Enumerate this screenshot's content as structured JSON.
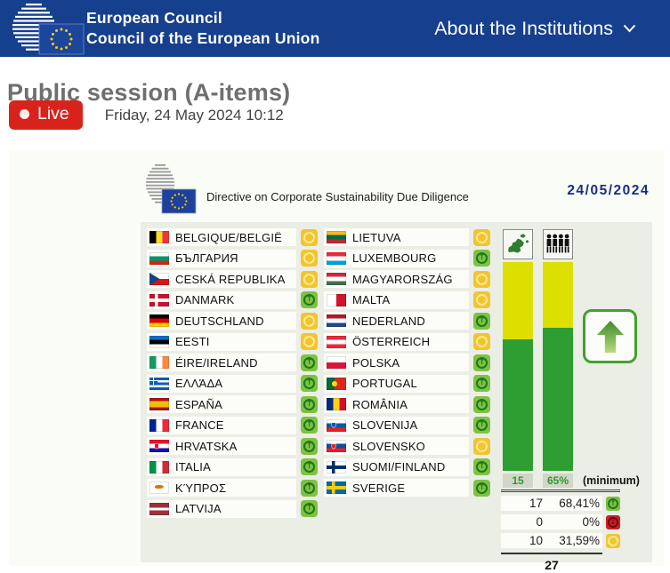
{
  "header": {
    "org_line1": "European Council",
    "org_line2": "Council of the European Union",
    "nav_label": "About the Institutions",
    "bg_color": "#163f8d"
  },
  "page": {
    "title": "Public session (A-items)",
    "live_label": "Live",
    "datetime": "Friday, 24 May 2024 10:12",
    "live_color": "#d8231d"
  },
  "vote_screen": {
    "subject": "Directive on Corporate Sustainability Due Diligence",
    "date": "24/05/2024",
    "legend_min_label": "(minimum)",
    "icons": [
      "europe-map-icon",
      "population-icon",
      "result-up-arrow-icon"
    ],
    "vote_colors": {
      "favour": "#7fc143",
      "against": "#c92026",
      "abstain": "#f2c431",
      "bar_green": "#2f9e32",
      "bar_yellow": "#dcdf00"
    },
    "countries_left": [
      {
        "name": "BELGIQUE/BELGIË",
        "vote": "abstain",
        "flag": {
          "t": "v",
          "c": [
            "#000000",
            "#fdda24",
            "#ef3340"
          ]
        }
      },
      {
        "name": "БЪЛГАРИЯ",
        "vote": "abstain",
        "flag": {
          "t": "h",
          "c": [
            "#ffffff",
            "#00966e",
            "#d62612"
          ]
        }
      },
      {
        "name": "CESKÁ REPUBLIKA",
        "vote": "abstain",
        "flag": {
          "t": "cz"
        }
      },
      {
        "name": "DANMARK",
        "vote": "favour",
        "flag": {
          "t": "cross",
          "bg": "#c8102e",
          "cr": "#ffffff"
        }
      },
      {
        "name": "DEUTSCHLAND",
        "vote": "abstain",
        "flag": {
          "t": "h",
          "c": [
            "#000000",
            "#dd0000",
            "#ffce00"
          ]
        }
      },
      {
        "name": "EESTI",
        "vote": "abstain",
        "flag": {
          "t": "h",
          "c": [
            "#0072ce",
            "#000000",
            "#ffffff"
          ]
        }
      },
      {
        "name": "ÉIRE/IRELAND",
        "vote": "favour",
        "flag": {
          "t": "v",
          "c": [
            "#169b62",
            "#ffffff",
            "#ff883e"
          ]
        }
      },
      {
        "name": "ΕΛΛΆΔΑ",
        "vote": "favour",
        "flag": {
          "t": "gr"
        }
      },
      {
        "name": "ESPAÑA",
        "vote": "favour",
        "flag": {
          "t": "hp",
          "c": [
            "#aa151b",
            "#f1bf00",
            "#aa151b"
          ],
          "p": [
            25,
            75
          ]
        }
      },
      {
        "name": "FRANCE",
        "vote": "favour",
        "flag": {
          "t": "v",
          "c": [
            "#002395",
            "#ffffff",
            "#ed2939"
          ]
        }
      },
      {
        "name": "HRVATSKA",
        "vote": "favour",
        "flag": {
          "t": "h",
          "c": [
            "#e8112d",
            "#ffffff",
            "#1711a6"
          ],
          "crest": "#e8112d"
        }
      },
      {
        "name": "ITALIA",
        "vote": "favour",
        "flag": {
          "t": "v",
          "c": [
            "#009246",
            "#ffffff",
            "#ce2b37"
          ]
        }
      },
      {
        "name": "ΚΎΠΡΟΣ",
        "vote": "favour",
        "flag": {
          "t": "cy"
        }
      },
      {
        "name": "LATVIJA",
        "vote": "favour",
        "flag": {
          "t": "hp",
          "c": [
            "#9e3039",
            "#ffffff",
            "#9e3039"
          ],
          "p": [
            40,
            60
          ]
        }
      }
    ],
    "countries_right": [
      {
        "name": "LIETUVA",
        "vote": "abstain",
        "flag": {
          "t": "h",
          "c": [
            "#fdb913",
            "#006a44",
            "#c1272d"
          ]
        }
      },
      {
        "name": "LUXEMBOURG",
        "vote": "favour",
        "flag": {
          "t": "h",
          "c": [
            "#ed2939",
            "#ffffff",
            "#00a1de"
          ]
        }
      },
      {
        "name": "MAGYARORSZÁG",
        "vote": "abstain",
        "flag": {
          "t": "h",
          "c": [
            "#cd2a3e",
            "#ffffff",
            "#436f4d"
          ]
        }
      },
      {
        "name": "MALTA",
        "vote": "abstain",
        "flag": {
          "t": "mt"
        }
      },
      {
        "name": "NEDERLAND",
        "vote": "favour",
        "flag": {
          "t": "h",
          "c": [
            "#ae1c28",
            "#ffffff",
            "#21468b"
          ]
        }
      },
      {
        "name": "ÖSTERREICH",
        "vote": "abstain",
        "flag": {
          "t": "h",
          "c": [
            "#ed2939",
            "#ffffff",
            "#ed2939"
          ]
        }
      },
      {
        "name": "POLSKA",
        "vote": "favour",
        "flag": {
          "t": "h",
          "c": [
            "#ffffff",
            "#dc143c"
          ]
        }
      },
      {
        "name": "PORTUGAL",
        "vote": "favour",
        "flag": {
          "t": "pt"
        }
      },
      {
        "name": "ROMÂNIA",
        "vote": "favour",
        "flag": {
          "t": "v",
          "c": [
            "#002b7f",
            "#fcd116",
            "#ce1126"
          ]
        }
      },
      {
        "name": "SLOVENIJA",
        "vote": "favour",
        "flag": {
          "t": "h",
          "c": [
            "#ffffff",
            "#005da4",
            "#ed1c24"
          ],
          "crest": "#005da4"
        }
      },
      {
        "name": "SLOVENSKO",
        "vote": "abstain",
        "flag": {
          "t": "h",
          "c": [
            "#ffffff",
            "#0b4ea2",
            "#ee1c25"
          ],
          "crest": "#ee1c25"
        }
      },
      {
        "name": "SUOMI/FINLAND",
        "vote": "favour",
        "flag": {
          "t": "cross",
          "bg": "#ffffff",
          "cr": "#002f6c"
        }
      },
      {
        "name": "SVERIGE",
        "vote": "favour",
        "flag": {
          "t": "cross",
          "bg": "#006aa7",
          "cr": "#fecc02"
        }
      }
    ],
    "results": {
      "rows": [
        {
          "id": "in-favour",
          "count": "17",
          "pct": "68,41%",
          "vote": "favour"
        },
        {
          "id": "against",
          "count": "0",
          "pct": "0%",
          "vote": "against"
        },
        {
          "id": "abstentions",
          "count": "10",
          "pct": "31,59%",
          "vote": "abstain"
        }
      ],
      "total": "27"
    },
    "chart_data": {
      "type": "bar",
      "stacked": true,
      "categories": [
        "member-states",
        "population"
      ],
      "series": [
        {
          "name": "in-favour-green",
          "values": [
            62.96,
            68.41
          ]
        },
        {
          "name": "not-in-favour-yellow",
          "values": [
            37.04,
            31.59
          ]
        }
      ],
      "minimum_labels": [
        "15",
        "65%"
      ],
      "ylim": [
        0,
        100
      ],
      "legend_position": "below",
      "grid": false
    }
  }
}
